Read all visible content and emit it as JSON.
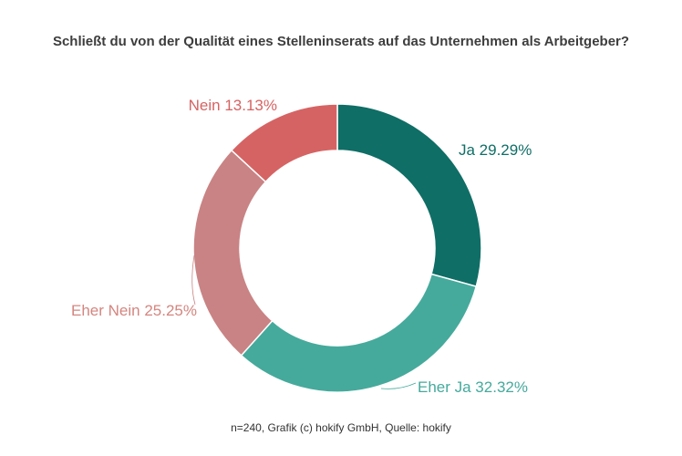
{
  "chart_data": {
    "type": "pie",
    "title": "Schließt du von der Qualität eines Stelleninserats auf das Unternehmen als Arbeitgeber?",
    "donut": true,
    "slices": [
      {
        "label": "Ja",
        "value": 29.29,
        "display": "29.29%",
        "color": "#0f6e66",
        "label_color": "#0f6e66"
      },
      {
        "label": "Eher Ja",
        "value": 32.32,
        "display": "32.32%",
        "color": "#45aa9c",
        "label_color": "#45aa9c"
      },
      {
        "label": "Eher Nein",
        "value": 25.25,
        "display": "25.25%",
        "color": "#c98384",
        "label_color": "#d4857f"
      },
      {
        "label": "Nein",
        "value": 13.13,
        "display": "13.13%",
        "color": "#d66363",
        "label_color": "#d66363"
      }
    ]
  },
  "footnote": "n=240, Grafik (c) hokify GmbH, Quelle: hokify"
}
